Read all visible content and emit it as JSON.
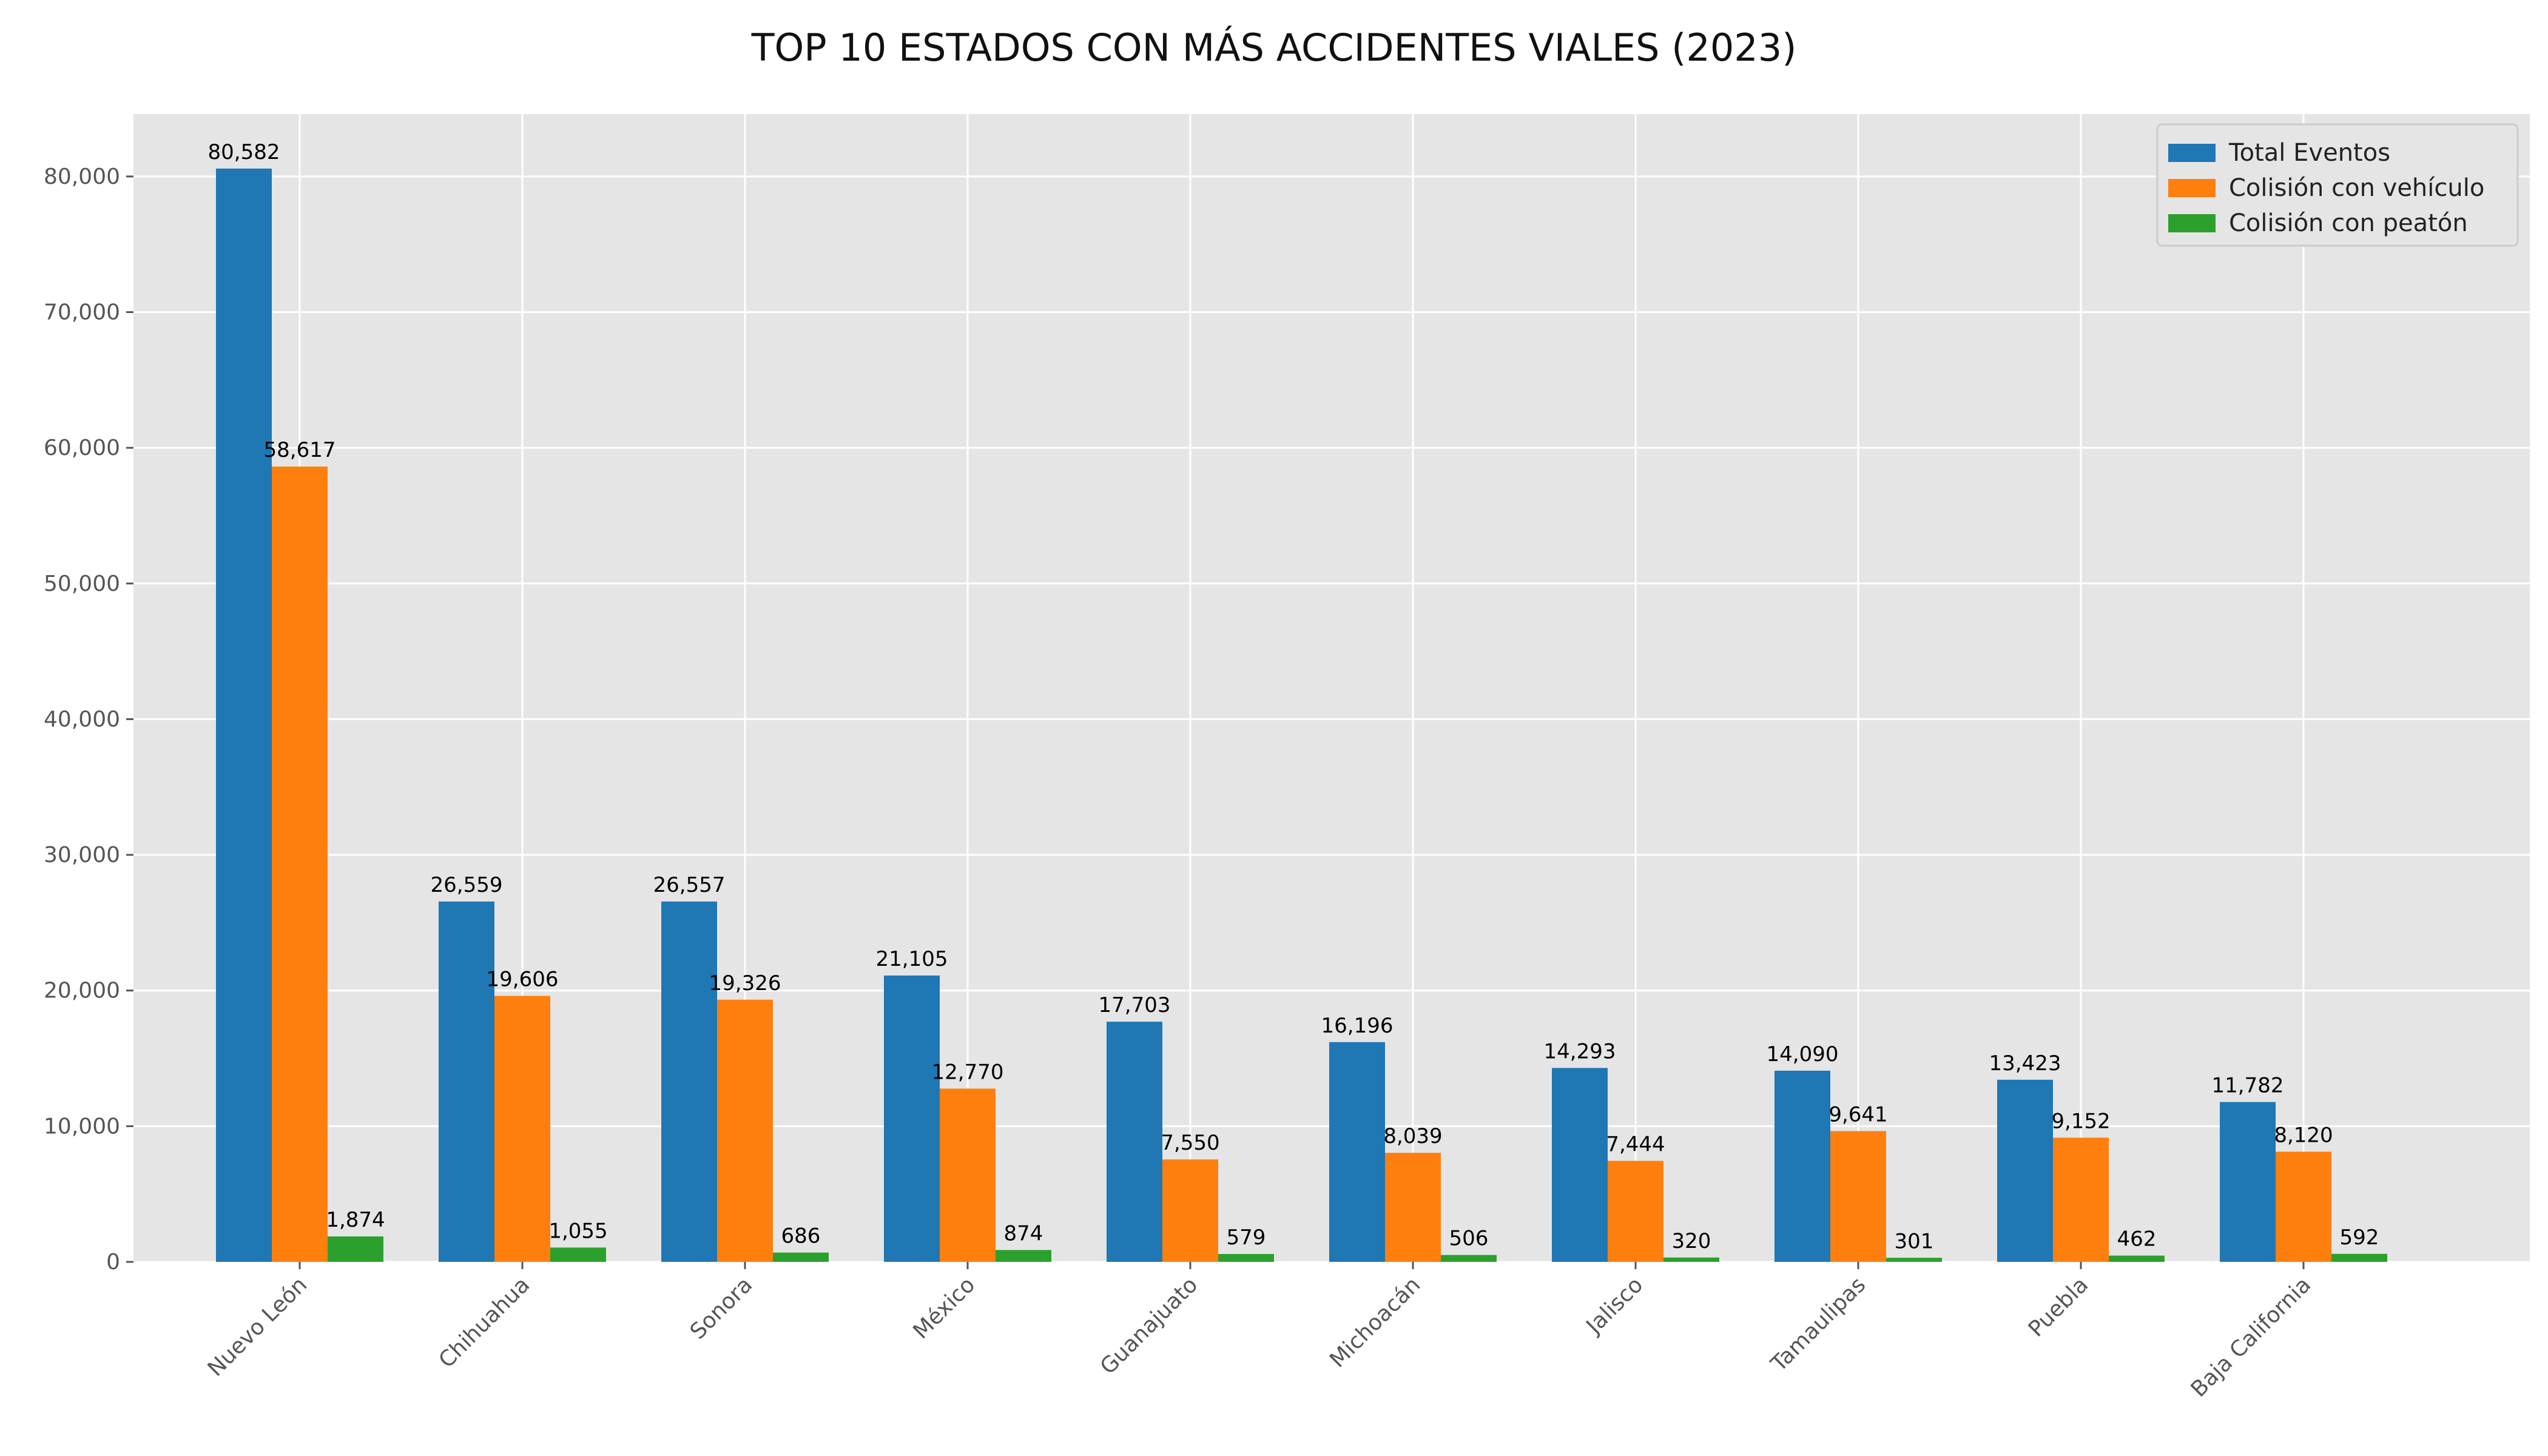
{
  "chart_data": {
    "type": "bar",
    "title": "TOP 10 ESTADOS CON MÁS ACCIDENTES VIALES (2023)",
    "xlabel": "",
    "ylabel": "",
    "categories": [
      "Nuevo León",
      "Chihuahua",
      "Sonora",
      "México",
      "Guanajuato",
      "Michoacán",
      "Jalisco",
      "Tamaulipas",
      "Puebla",
      "Baja California"
    ],
    "series": [
      {
        "name": "Total Eventos",
        "color": "#1f77b4",
        "values": [
          80582,
          26559,
          26557,
          21105,
          17703,
          16196,
          14293,
          14090,
          13423,
          11782
        ],
        "labels": [
          "80,582",
          "26,559",
          "26,557",
          "21,105",
          "17,703",
          "16,196",
          "14,293",
          "14,090",
          "13,423",
          "11,782"
        ]
      },
      {
        "name": "Colisión con vehículo",
        "color": "#ff7f0e",
        "values": [
          58617,
          19606,
          19326,
          12770,
          7550,
          8039,
          7444,
          9641,
          9152,
          8120
        ],
        "labels": [
          "58,617",
          "19,606",
          "19,326",
          "12,770",
          "7,550",
          "8,039",
          "7,444",
          "9,641",
          "9,152",
          "8,120"
        ]
      },
      {
        "name": "Colisión con peatón",
        "color": "#2ca02c",
        "values": [
          1874,
          1055,
          686,
          874,
          579,
          506,
          320,
          301,
          462,
          592
        ],
        "labels": [
          "1,874",
          "1,055",
          "686",
          "874",
          "579",
          "506",
          "320",
          "301",
          "462",
          "592"
        ]
      }
    ],
    "ylim": [
      0,
      84600
    ],
    "yticks": [
      0,
      10000,
      20000,
      30000,
      40000,
      50000,
      60000,
      70000,
      80000
    ],
    "ytick_labels": [
      "0",
      "10,000",
      "20,000",
      "30,000",
      "40,000",
      "50,000",
      "60,000",
      "70,000",
      "80,000"
    ],
    "grid": true,
    "legend_position": "top-right",
    "background_color": "#e5e5e5",
    "grid_color": "#ffffff"
  }
}
